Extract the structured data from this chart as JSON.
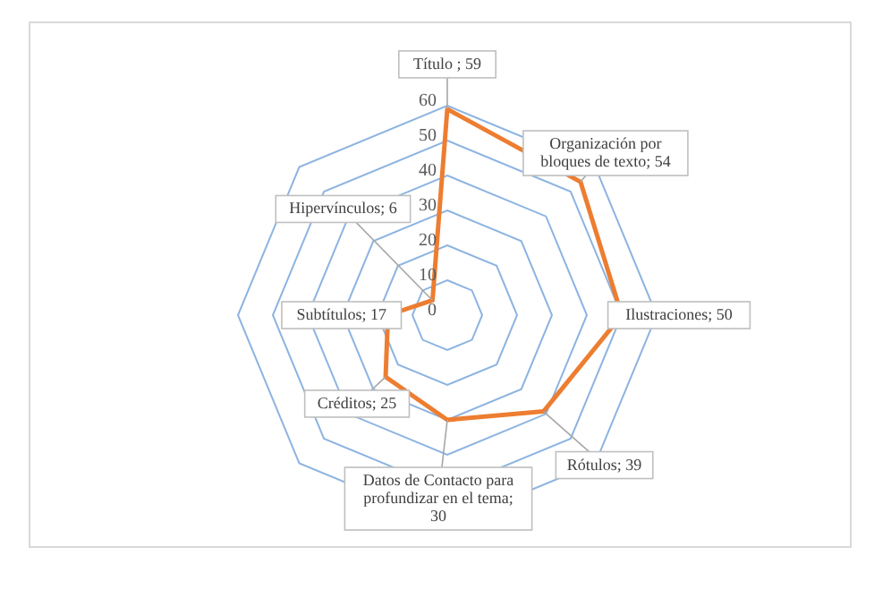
{
  "chart_data": {
    "type": "radar",
    "categories": [
      "Título ; 59",
      "Organización por bloques de texto; 54",
      "Ilustraciones; 50",
      "Rótulos; 39",
      "Datos de Contacto para profundizar en el tema; 30",
      "Créditos; 25",
      "Subtítulos; 17",
      "Hipervínculos; 6"
    ],
    "series": [
      {
        "color": "#ed7d31",
        "values": [
          59,
          54,
          50,
          39,
          30,
          25,
          17,
          6
        ]
      }
    ],
    "ylim": [
      0,
      60
    ],
    "yticks": [
      0,
      10,
      20,
      30,
      40,
      50,
      60
    ],
    "grid": true,
    "legend": false,
    "marker": "none",
    "line_style": "solid"
  }
}
